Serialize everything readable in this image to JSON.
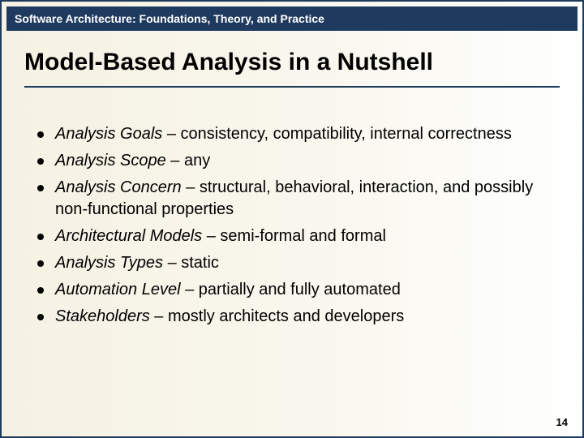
{
  "header": {
    "text": "Software Architecture: Foundations, Theory, and Practice"
  },
  "title": "Model-Based Analysis in a Nutshell",
  "bullets": [
    {
      "term": "Analysis Goals",
      "rest": " – consistency, compatibility, internal correctness"
    },
    {
      "term": "Analysis Scope",
      "rest": " – any"
    },
    {
      "term": "Analysis Concern",
      "rest": " – structural, behavioral, interaction, and possibly non-functional properties"
    },
    {
      "term": "Architectural Models",
      "rest": " – semi-formal and formal"
    },
    {
      "term": "Analysis Types",
      "rest": " – static"
    },
    {
      "term": "Automation Level",
      "rest": " – partially and fully automated"
    },
    {
      "term": "Stakeholders",
      "rest": " – mostly architects and developers"
    }
  ],
  "page_number": "14",
  "colors": {
    "header_bg": "#1f3a5f",
    "header_text": "#ffffff",
    "body_bg_left": "#f5f1e3",
    "body_bg_right": "#feffff",
    "text": "#000000"
  },
  "typography": {
    "header_fontsize": 14,
    "title_fontsize": 30,
    "bullet_fontsize": 20,
    "pagenum_fontsize": 13
  }
}
